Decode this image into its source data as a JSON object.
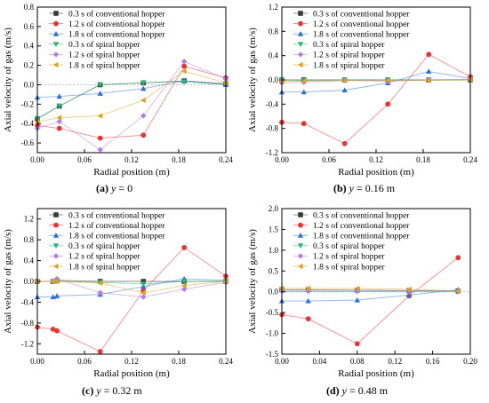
{
  "colors": {
    "conv_03": "#3a3a3a",
    "conv_12": "#ee3232",
    "conv_18": "#2f6fd6",
    "spiral_03": "#2bb673",
    "spiral_12": "#b57bea",
    "spiral_18": "#d9a520"
  },
  "captions": [
    {
      "label": "(a)",
      "var": "y",
      "rest": " = 0"
    },
    {
      "label": "(b)",
      "var": "y",
      "rest": " = 0.16 m"
    },
    {
      "label": "(c)",
      "var": "y",
      "rest": " = 0.32 m"
    },
    {
      "label": "(d)",
      "var": "y",
      "rest": " = 0.48 m"
    }
  ],
  "chart_data": [
    {
      "type": "line",
      "xlabel": "Radial position (m)",
      "ylabel": "Axial velocity of gas (m/s)",
      "xlim": [
        0,
        0.24
      ],
      "ylim": [
        -0.7,
        0.8
      ],
      "xticks": [
        0.0,
        0.06,
        0.12,
        0.18,
        0.24
      ],
      "yticks": [
        -0.6,
        -0.4,
        -0.2,
        0.0,
        0.2,
        0.4,
        0.6,
        0.8
      ],
      "xtick_labels": [
        "0.00",
        "0.06",
        "0.12",
        "0.18",
        "0.24"
      ],
      "ytick_labels": [
        "-0.6",
        "-0.4",
        "-0.2",
        "0.0",
        "0.2",
        "0.4",
        "0.6",
        "0.8"
      ],
      "legend": "top-right",
      "series": [
        {
          "name": "0.3 s of conventional hopper",
          "color_key": "conv_03",
          "marker": "square",
          "x": [
            0.0,
            0.028,
            0.08,
            0.135,
            0.187,
            0.24
          ],
          "y": [
            -0.35,
            -0.22,
            0.0,
            0.02,
            0.04,
            0.01
          ]
        },
        {
          "name": "1.2 s of conventional hopper",
          "color_key": "conv_12",
          "marker": "circle",
          "x": [
            0.0,
            0.028,
            0.08,
            0.135,
            0.187,
            0.24
          ],
          "y": [
            -0.42,
            -0.45,
            -0.55,
            -0.52,
            0.19,
            0.07
          ]
        },
        {
          "name": "1.8 s of conventional hopper",
          "color_key": "conv_18",
          "marker": "triangle-up",
          "x": [
            0.0,
            0.028,
            0.08,
            0.135,
            0.187,
            0.24
          ],
          "y": [
            -0.13,
            -0.12,
            -0.09,
            -0.04,
            0.04,
            0.0
          ]
        },
        {
          "name": "0.3 s of spiral hopper",
          "color_key": "spiral_03",
          "marker": "triangle-down",
          "x": [
            0.0,
            0.028,
            0.08,
            0.135,
            0.187,
            0.24
          ],
          "y": [
            -0.35,
            -0.22,
            0.0,
            0.02,
            0.03,
            0.0
          ]
        },
        {
          "name": "1.2 s of spiral hopper",
          "color_key": "spiral_12",
          "marker": "diamond",
          "x": [
            0.0,
            0.028,
            0.08,
            0.135,
            0.187,
            0.24
          ],
          "y": [
            -0.45,
            -0.38,
            -0.67,
            -0.32,
            0.24,
            0.06
          ]
        },
        {
          "name": "1.8 s of spiral hopper",
          "color_key": "spiral_18",
          "marker": "triangle-left",
          "x": [
            0.0,
            0.028,
            0.08,
            0.135,
            0.187,
            0.24
          ],
          "y": [
            -0.38,
            -0.34,
            -0.32,
            -0.16,
            0.14,
            0.02
          ]
        }
      ]
    },
    {
      "type": "line",
      "xlabel": "Radial position (m)",
      "ylabel": "Axial velocity of gas (m/s)",
      "xlim": [
        0,
        0.24
      ],
      "ylim": [
        -1.2,
        1.2
      ],
      "xticks": [
        0.0,
        0.06,
        0.12,
        0.18,
        0.24
      ],
      "yticks": [
        -1.2,
        -0.8,
        -0.4,
        0.0,
        0.4,
        0.8,
        1.2
      ],
      "xtick_labels": [
        "0.00",
        "0.06",
        "0.12",
        "0.18",
        "0.24"
      ],
      "ytick_labels": [
        "-1.2",
        "-0.8",
        "-0.4",
        "0.0",
        "0.4",
        "0.8",
        "1.2"
      ],
      "legend": "top-right",
      "series": [
        {
          "name": "0.3 s of conventional hopper",
          "color_key": "conv_03",
          "marker": "square",
          "x": [
            0.0,
            0.028,
            0.08,
            0.135,
            0.187,
            0.24
          ],
          "y": [
            0.0,
            0.0,
            0.0,
            0.0,
            0.0,
            0.0
          ]
        },
        {
          "name": "1.2 s of conventional hopper",
          "color_key": "conv_12",
          "marker": "circle",
          "x": [
            0.0,
            0.028,
            0.08,
            0.135,
            0.187,
            0.24
          ],
          "y": [
            -0.7,
            -0.72,
            -1.05,
            -0.4,
            0.42,
            0.05
          ]
        },
        {
          "name": "1.8 s of conventional hopper",
          "color_key": "conv_18",
          "marker": "triangle-up",
          "x": [
            0.0,
            0.028,
            0.08,
            0.135,
            0.187,
            0.24
          ],
          "y": [
            -0.2,
            -0.2,
            -0.17,
            -0.05,
            0.14,
            0.02
          ]
        },
        {
          "name": "0.3 s of spiral hopper",
          "color_key": "spiral_03",
          "marker": "triangle-down",
          "x": [
            0.0,
            0.028,
            0.08,
            0.135,
            0.187,
            0.24
          ],
          "y": [
            0.0,
            -0.01,
            0.0,
            0.0,
            0.0,
            0.0
          ]
        },
        {
          "name": "1.2 s of spiral hopper",
          "color_key": "spiral_12",
          "marker": "diamond",
          "x": [
            0.0,
            0.028,
            0.08,
            0.135,
            0.187,
            0.24
          ],
          "y": [
            -0.05,
            -0.04,
            -0.01,
            -0.02,
            0.0,
            0.01
          ]
        },
        {
          "name": "1.8 s of spiral hopper",
          "color_key": "spiral_18",
          "marker": "triangle-left",
          "x": [
            0.0,
            0.028,
            0.08,
            0.135,
            0.187,
            0.24
          ],
          "y": [
            -0.02,
            -0.02,
            -0.01,
            -0.01,
            -0.01,
            0.0
          ]
        }
      ]
    },
    {
      "type": "line",
      "xlabel": "Radial position (m)",
      "ylabel": "Axial velocity of gas (m/s)",
      "xlim": [
        0,
        0.24
      ],
      "ylim": [
        -1.4,
        1.4
      ],
      "xticks": [
        0.0,
        0.06,
        0.12,
        0.18,
        0.24
      ],
      "yticks": [
        -1.2,
        -0.8,
        -0.4,
        0.0,
        0.4,
        0.8,
        1.2
      ],
      "xtick_labels": [
        "0.00",
        "0.06",
        "0.12",
        "0.18",
        "0.24"
      ],
      "ytick_labels": [
        "-1.2",
        "-0.8",
        "-0.4",
        "0.0",
        "0.4",
        "0.8",
        "1.2"
      ],
      "legend": "top-right",
      "series": [
        {
          "name": "0.3 s of conventional hopper",
          "color_key": "conv_03",
          "marker": "square",
          "x": [
            0.0,
            0.02,
            0.025,
            0.08,
            0.135,
            0.187,
            0.24
          ],
          "y": [
            0.0,
            0.0,
            0.02,
            0.0,
            0.0,
            0.0,
            0.0
          ]
        },
        {
          "name": "1.2 s of conventional hopper",
          "color_key": "conv_12",
          "marker": "circle",
          "x": [
            0.0,
            0.02,
            0.025,
            0.08,
            0.135,
            0.187,
            0.24
          ],
          "y": [
            -0.88,
            -0.92,
            -0.95,
            -1.35,
            -0.18,
            0.65,
            0.1
          ]
        },
        {
          "name": "1.8 s of conventional hopper",
          "color_key": "conv_18",
          "marker": "triangle-up",
          "x": [
            0.0,
            0.02,
            0.025,
            0.08,
            0.135,
            0.187,
            0.24
          ],
          "y": [
            -0.3,
            -0.3,
            -0.28,
            -0.25,
            -0.1,
            0.05,
            0.02
          ]
        },
        {
          "name": "0.3 s of spiral hopper",
          "color_key": "spiral_03",
          "marker": "triangle-down",
          "x": [
            0.0,
            0.02,
            0.025,
            0.08,
            0.135,
            0.187,
            0.24
          ],
          "y": [
            0.0,
            0.0,
            0.0,
            -0.02,
            -0.05,
            0.0,
            0.0
          ]
        },
        {
          "name": "1.2 s of spiral hopper",
          "color_key": "spiral_12",
          "marker": "diamond",
          "x": [
            0.0,
            0.02,
            0.025,
            0.08,
            0.135,
            0.187,
            0.24
          ],
          "y": [
            0.0,
            0.0,
            0.05,
            -0.22,
            -0.3,
            -0.15,
            -0.02
          ]
        },
        {
          "name": "1.8 s of spiral hopper",
          "color_key": "spiral_18",
          "marker": "triangle-left",
          "x": [
            0.0,
            0.02,
            0.025,
            0.08,
            0.135,
            0.187,
            0.24
          ],
          "y": [
            0.0,
            0.0,
            0.0,
            -0.03,
            -0.22,
            -0.08,
            0.0
          ]
        }
      ]
    },
    {
      "type": "line",
      "xlabel": "Radial position (m)",
      "ylabel": "Axial velocity of gas (m/s)",
      "xlim": [
        0,
        0.2
      ],
      "ylim": [
        -1.5,
        2.0
      ],
      "xticks": [
        0.0,
        0.04,
        0.08,
        0.12,
        0.16,
        0.2
      ],
      "yticks": [
        -1.5,
        -1.0,
        -0.5,
        0.0,
        0.5,
        1.0,
        1.5,
        2.0
      ],
      "xtick_labels": [
        "0.00",
        "0.04",
        "0.08",
        "0.12",
        "0.16",
        "0.20"
      ],
      "ytick_labels": [
        "-1.5",
        "-1.0",
        "-0.5",
        "0.0",
        "0.5",
        "1.0",
        "1.5",
        "2.0"
      ],
      "legend": "top-right",
      "series": [
        {
          "name": "0.3 s of conventional hopper",
          "color_key": "conv_03",
          "marker": "square",
          "x": [
            0.0,
            0.028,
            0.08,
            0.135,
            0.187
          ],
          "y": [
            0.05,
            0.05,
            0.04,
            0.03,
            0.02
          ]
        },
        {
          "name": "1.2 s of conventional hopper",
          "color_key": "conv_12",
          "marker": "circle",
          "x": [
            0.0,
            0.028,
            0.08,
            0.135,
            0.187
          ],
          "y": [
            -0.55,
            -0.65,
            -1.25,
            -0.1,
            0.82
          ]
        },
        {
          "name": "1.8 s of conventional hopper",
          "color_key": "conv_18",
          "marker": "triangle-up",
          "x": [
            0.0,
            0.028,
            0.08,
            0.135,
            0.187
          ],
          "y": [
            -0.22,
            -0.22,
            -0.2,
            -0.08,
            0.05
          ]
        },
        {
          "name": "0.3 s of spiral hopper",
          "color_key": "spiral_03",
          "marker": "triangle-down",
          "x": [
            0.0,
            0.028,
            0.08,
            0.135,
            0.187
          ],
          "y": [
            0.0,
            0.0,
            0.0,
            0.0,
            0.0
          ]
        },
        {
          "name": "1.2 s of spiral hopper",
          "color_key": "spiral_12",
          "marker": "diamond",
          "x": [
            0.0,
            0.028,
            0.08,
            0.135,
            0.187
          ],
          "y": [
            0.02,
            0.02,
            0.02,
            0.02,
            0.02
          ]
        },
        {
          "name": "1.8 s of spiral hopper",
          "color_key": "spiral_18",
          "marker": "triangle-left",
          "x": [
            0.0,
            0.028,
            0.08,
            0.135,
            0.187
          ],
          "y": [
            0.08,
            0.08,
            0.08,
            0.06,
            0.02
          ]
        }
      ]
    }
  ]
}
